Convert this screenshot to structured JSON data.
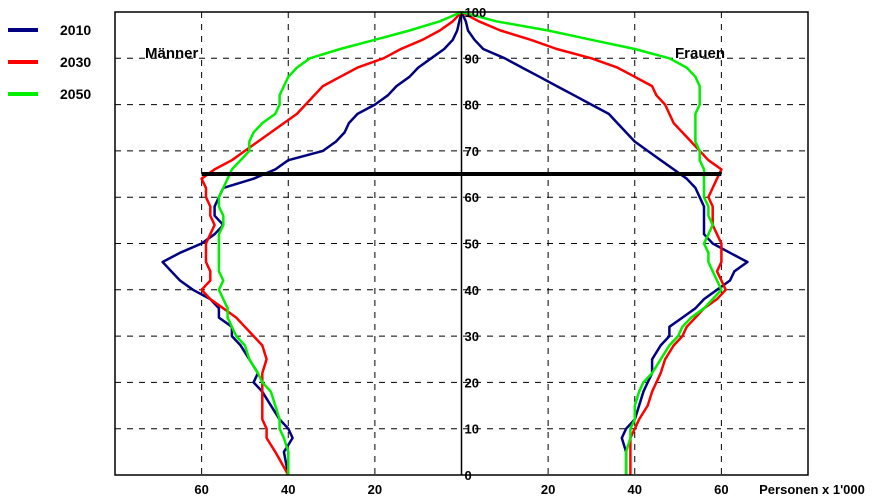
{
  "chart_data": {
    "type": "line",
    "title": "",
    "xlabel": "Personen x 1'000",
    "ylabel": "",
    "x_ticks_left": [
      "60",
      "40",
      "20"
    ],
    "x_ticks_right": [
      "20",
      "40",
      "60"
    ],
    "y_ticks": [
      "0",
      "10",
      "20",
      "30",
      "40",
      "50",
      "60",
      "70",
      "80",
      "90",
      "100"
    ],
    "xlim": [
      -80,
      80
    ],
    "ylim": [
      0,
      100
    ],
    "grid": true,
    "legend_position": "top-left",
    "side_labels": {
      "left": "Männer",
      "right": "Frauen"
    },
    "reference_line": {
      "age": 65,
      "x_from": -60,
      "x_to": 60,
      "color": "#000000"
    },
    "series": [
      {
        "name": "2010",
        "color": "#000080",
        "men": [
          [
            0,
            40
          ],
          [
            5,
            41
          ],
          [
            8,
            39
          ],
          [
            10,
            40
          ],
          [
            12,
            42
          ],
          [
            15,
            44
          ],
          [
            18,
            46
          ],
          [
            20,
            48
          ],
          [
            22,
            47
          ],
          [
            25,
            49
          ],
          [
            28,
            51
          ],
          [
            30,
            53
          ],
          [
            32,
            53
          ],
          [
            34,
            56
          ],
          [
            36,
            56
          ],
          [
            38,
            58
          ],
          [
            40,
            62
          ],
          [
            42,
            65
          ],
          [
            44,
            67
          ],
          [
            46,
            69
          ],
          [
            48,
            65
          ],
          [
            50,
            60
          ],
          [
            52,
            57
          ],
          [
            54,
            55
          ],
          [
            56,
            57
          ],
          [
            58,
            57
          ],
          [
            60,
            56
          ],
          [
            62,
            55
          ],
          [
            64,
            48
          ],
          [
            66,
            43
          ],
          [
            68,
            40
          ],
          [
            70,
            32
          ],
          [
            72,
            29
          ],
          [
            74,
            27
          ],
          [
            76,
            26
          ],
          [
            78,
            24
          ],
          [
            80,
            20
          ],
          [
            82,
            17
          ],
          [
            84,
            15
          ],
          [
            86,
            12
          ],
          [
            88,
            10
          ],
          [
            90,
            7
          ],
          [
            92,
            4
          ],
          [
            94,
            2
          ],
          [
            96,
            1
          ],
          [
            98,
            0.5
          ],
          [
            100,
            0
          ]
        ],
        "women": [
          [
            0,
            38
          ],
          [
            5,
            38
          ],
          [
            8,
            37
          ],
          [
            10,
            38
          ],
          [
            12,
            40
          ],
          [
            15,
            41
          ],
          [
            18,
            42
          ],
          [
            20,
            43
          ],
          [
            22,
            44
          ],
          [
            25,
            44
          ],
          [
            28,
            46
          ],
          [
            30,
            48
          ],
          [
            32,
            48
          ],
          [
            34,
            51
          ],
          [
            36,
            54
          ],
          [
            38,
            56
          ],
          [
            40,
            59
          ],
          [
            42,
            62
          ],
          [
            44,
            63
          ],
          [
            46,
            66
          ],
          [
            48,
            62
          ],
          [
            50,
            58
          ],
          [
            52,
            56
          ],
          [
            54,
            56
          ],
          [
            56,
            56
          ],
          [
            58,
            56
          ],
          [
            60,
            55
          ],
          [
            62,
            54
          ],
          [
            64,
            52
          ],
          [
            66,
            49
          ],
          [
            68,
            46
          ],
          [
            70,
            43
          ],
          [
            72,
            40
          ],
          [
            74,
            38
          ],
          [
            76,
            36
          ],
          [
            78,
            34
          ],
          [
            80,
            30
          ],
          [
            82,
            26
          ],
          [
            84,
            22
          ],
          [
            86,
            18
          ],
          [
            88,
            14
          ],
          [
            90,
            10
          ],
          [
            92,
            5
          ],
          [
            94,
            3
          ],
          [
            96,
            1.5
          ],
          [
            98,
            1
          ],
          [
            100,
            0
          ]
        ]
      },
      {
        "name": "2030",
        "color": "#ff0000",
        "men": [
          [
            0,
            40
          ],
          [
            5,
            43
          ],
          [
            8,
            45
          ],
          [
            10,
            45
          ],
          [
            12,
            46
          ],
          [
            15,
            46
          ],
          [
            18,
            46
          ],
          [
            20,
            46
          ],
          [
            22,
            46
          ],
          [
            25,
            45
          ],
          [
            28,
            46
          ],
          [
            30,
            48
          ],
          [
            32,
            50
          ],
          [
            34,
            52
          ],
          [
            36,
            55
          ],
          [
            38,
            58
          ],
          [
            40,
            60
          ],
          [
            42,
            58
          ],
          [
            44,
            58
          ],
          [
            46,
            59
          ],
          [
            48,
            59
          ],
          [
            50,
            59
          ],
          [
            52,
            58
          ],
          [
            54,
            57
          ],
          [
            56,
            58
          ],
          [
            58,
            58
          ],
          [
            60,
            59
          ],
          [
            62,
            59
          ],
          [
            64,
            60
          ],
          [
            66,
            57
          ],
          [
            68,
            53
          ],
          [
            70,
            50
          ],
          [
            72,
            47
          ],
          [
            74,
            44
          ],
          [
            76,
            41
          ],
          [
            78,
            38
          ],
          [
            80,
            36
          ],
          [
            82,
            34
          ],
          [
            84,
            32
          ],
          [
            86,
            28
          ],
          [
            88,
            24
          ],
          [
            90,
            18
          ],
          [
            92,
            14
          ],
          [
            94,
            9
          ],
          [
            96,
            5
          ],
          [
            98,
            2
          ],
          [
            100,
            0
          ]
        ],
        "women": [
          [
            0,
            39
          ],
          [
            5,
            39
          ],
          [
            8,
            39
          ],
          [
            10,
            40
          ],
          [
            12,
            41
          ],
          [
            15,
            43
          ],
          [
            18,
            44
          ],
          [
            20,
            45
          ],
          [
            22,
            46
          ],
          [
            25,
            47
          ],
          [
            28,
            49
          ],
          [
            30,
            51
          ],
          [
            32,
            52
          ],
          [
            34,
            54
          ],
          [
            36,
            56
          ],
          [
            38,
            59
          ],
          [
            40,
            61
          ],
          [
            42,
            60
          ],
          [
            44,
            59
          ],
          [
            46,
            60
          ],
          [
            48,
            60
          ],
          [
            50,
            60
          ],
          [
            52,
            59
          ],
          [
            54,
            58
          ],
          [
            56,
            58
          ],
          [
            58,
            58
          ],
          [
            60,
            57
          ],
          [
            62,
            58
          ],
          [
            64,
            59
          ],
          [
            66,
            60
          ],
          [
            68,
            57
          ],
          [
            70,
            55
          ],
          [
            72,
            53
          ],
          [
            74,
            51
          ],
          [
            76,
            49
          ],
          [
            78,
            48
          ],
          [
            80,
            47
          ],
          [
            82,
            45
          ],
          [
            84,
            44
          ],
          [
            86,
            40
          ],
          [
            88,
            36
          ],
          [
            90,
            30
          ],
          [
            92,
            22
          ],
          [
            94,
            16
          ],
          [
            96,
            9
          ],
          [
            98,
            4
          ],
          [
            100,
            0
          ]
        ]
      },
      {
        "name": "2050",
        "color": "#00ee00",
        "men": [
          [
            0,
            40
          ],
          [
            5,
            40
          ],
          [
            8,
            41
          ],
          [
            10,
            42
          ],
          [
            12,
            42
          ],
          [
            15,
            43
          ],
          [
            18,
            44
          ],
          [
            20,
            46
          ],
          [
            22,
            47
          ],
          [
            25,
            49
          ],
          [
            28,
            50
          ],
          [
            30,
            52
          ],
          [
            32,
            53
          ],
          [
            34,
            54
          ],
          [
            36,
            54
          ],
          [
            38,
            55
          ],
          [
            40,
            56
          ],
          [
            42,
            55
          ],
          [
            44,
            56
          ],
          [
            46,
            56
          ],
          [
            48,
            56
          ],
          [
            50,
            56
          ],
          [
            52,
            56
          ],
          [
            54,
            55
          ],
          [
            56,
            55
          ],
          [
            58,
            56
          ],
          [
            60,
            56
          ],
          [
            62,
            55
          ],
          [
            64,
            54
          ],
          [
            66,
            53
          ],
          [
            68,
            51
          ],
          [
            70,
            49
          ],
          [
            72,
            49
          ],
          [
            74,
            48
          ],
          [
            76,
            46
          ],
          [
            78,
            43
          ],
          [
            80,
            42
          ],
          [
            82,
            42
          ],
          [
            84,
            41
          ],
          [
            86,
            40
          ],
          [
            88,
            38
          ],
          [
            90,
            35
          ],
          [
            92,
            28
          ],
          [
            94,
            20
          ],
          [
            96,
            12
          ],
          [
            98,
            5
          ],
          [
            100,
            0
          ]
        ],
        "women": [
          [
            0,
            38
          ],
          [
            5,
            38
          ],
          [
            8,
            39
          ],
          [
            10,
            39
          ],
          [
            12,
            40
          ],
          [
            15,
            40
          ],
          [
            18,
            41
          ],
          [
            20,
            42
          ],
          [
            22,
            44
          ],
          [
            25,
            46
          ],
          [
            28,
            48
          ],
          [
            30,
            50
          ],
          [
            32,
            51
          ],
          [
            34,
            53
          ],
          [
            36,
            56
          ],
          [
            38,
            58
          ],
          [
            40,
            60
          ],
          [
            42,
            59
          ],
          [
            44,
            58
          ],
          [
            46,
            57
          ],
          [
            48,
            57
          ],
          [
            50,
            56
          ],
          [
            52,
            57
          ],
          [
            54,
            58
          ],
          [
            56,
            57
          ],
          [
            58,
            57
          ],
          [
            60,
            56
          ],
          [
            62,
            56
          ],
          [
            64,
            56
          ],
          [
            66,
            56
          ],
          [
            68,
            55
          ],
          [
            70,
            55
          ],
          [
            72,
            54
          ],
          [
            74,
            54
          ],
          [
            76,
            54
          ],
          [
            78,
            54
          ],
          [
            80,
            55
          ],
          [
            82,
            55
          ],
          [
            84,
            55
          ],
          [
            86,
            54
          ],
          [
            88,
            52
          ],
          [
            90,
            48
          ],
          [
            92,
            40
          ],
          [
            94,
            30
          ],
          [
            96,
            20
          ],
          [
            98,
            8
          ],
          [
            100,
            0
          ]
        ]
      }
    ]
  }
}
